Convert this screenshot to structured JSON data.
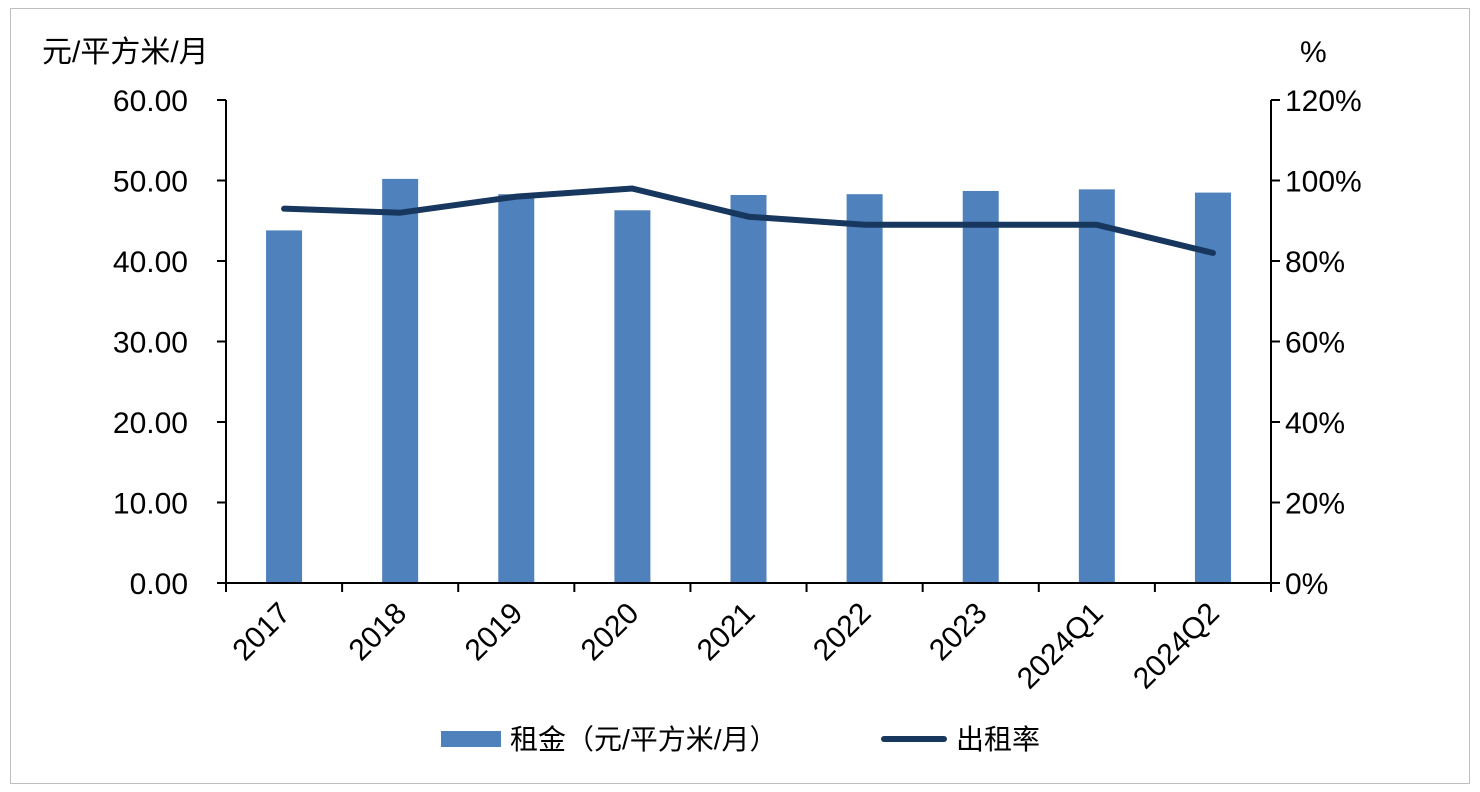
{
  "chart_data": {
    "type": "bar+line",
    "categories": [
      "2017",
      "2018",
      "2019",
      "2020",
      "2021",
      "2022",
      "2023",
      "2024Q1",
      "2024Q2"
    ],
    "series": [
      {
        "name": "租金（元/平方米/月）",
        "type": "bar",
        "axis": "left",
        "color": "#4f81bd",
        "values": [
          43.8,
          50.2,
          48.3,
          46.3,
          48.2,
          48.3,
          48.7,
          48.9,
          48.5
        ]
      },
      {
        "name": "出租率",
        "type": "line",
        "axis": "right",
        "color": "#17375e",
        "values": [
          93.0,
          92.0,
          96.0,
          98.0,
          91.0,
          89.0,
          89.0,
          89.0,
          82.0
        ]
      }
    ],
    "left_axis": {
      "unit": "元/平方米/月",
      "ylim": [
        0,
        60
      ],
      "ticks": [
        "0.00",
        "10.00",
        "20.00",
        "30.00",
        "40.00",
        "50.00",
        "60.00"
      ]
    },
    "right_axis": {
      "unit": "%",
      "ylim": [
        0,
        120
      ],
      "ticks": [
        "0%",
        "20%",
        "40%",
        "60%",
        "80%",
        "100%",
        "120%"
      ]
    },
    "grid": false,
    "legend_position": "bottom"
  }
}
